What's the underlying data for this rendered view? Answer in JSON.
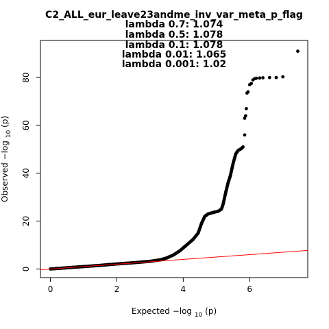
{
  "chart_data": {
    "type": "scatter",
    "title": "C2_ALL_eur_leave23andme_inv_var_meta_p_flag",
    "subtitle_lines": [
      "lambda 0.7: 1.074",
      "lambda 0.5: 1.078",
      "lambda 0.1: 1.078",
      "lambda 0.01: 1.065",
      "lambda 0.001: 1.02"
    ],
    "xlabel": {
      "text": "Expected",
      "expr_prefix": "−log",
      "expr_sub": "10",
      "expr_suffix": "(p)"
    },
    "ylabel": {
      "text": "Observed",
      "expr_prefix": "−log",
      "expr_sub": "10",
      "expr_suffix": "(p)"
    },
    "xlim": [
      -0.3,
      7.75
    ],
    "ylim": [
      -3.6,
      95.5
    ],
    "x_ticks": [
      0,
      2,
      4,
      6
    ],
    "y_ticks": [
      0,
      20,
      40,
      60,
      80
    ],
    "grid": false,
    "colors": {
      "points": "#000000",
      "reference_line": "#ff0000"
    },
    "reference_line": {
      "slope": 1.0,
      "intercept": 0
    },
    "curve": [
      [
        0,
        0
      ],
      [
        0.5,
        0.5
      ],
      [
        1.0,
        1.0
      ],
      [
        1.5,
        1.5
      ],
      [
        2.0,
        2.1
      ],
      [
        2.5,
        2.6
      ],
      [
        3.0,
        3.2
      ],
      [
        3.3,
        3.8
      ],
      [
        3.5,
        4.6
      ],
      [
        3.7,
        5.8
      ],
      [
        3.9,
        7.6
      ],
      [
        4.1,
        10.0
      ],
      [
        4.3,
        12.4
      ],
      [
        4.45,
        15.0
      ],
      [
        4.55,
        19.0
      ],
      [
        4.65,
        22.0
      ],
      [
        4.75,
        23.0
      ],
      [
        4.9,
        23.6
      ],
      [
        5.05,
        24.1
      ],
      [
        5.15,
        25.0
      ],
      [
        5.2,
        27.0
      ],
      [
        5.28,
        32.0
      ],
      [
        5.35,
        36.0
      ],
      [
        5.42,
        39.0
      ],
      [
        5.5,
        44.0
      ],
      [
        5.58,
        48.0
      ],
      [
        5.65,
        49.5
      ],
      [
        5.75,
        50.3
      ],
      [
        5.8,
        51.0
      ]
    ],
    "top_points": [
      [
        5.85,
        56
      ],
      [
        5.85,
        63
      ],
      [
        5.88,
        64
      ],
      [
        5.9,
        67
      ],
      [
        5.92,
        73.5
      ],
      [
        5.95,
        74
      ],
      [
        6.0,
        77
      ],
      [
        6.05,
        77.5
      ],
      [
        6.1,
        79
      ],
      [
        6.15,
        79.5
      ],
      [
        6.2,
        79.7
      ],
      [
        6.3,
        79.8
      ],
      [
        6.4,
        79.9
      ],
      [
        6.6,
        80.0
      ],
      [
        6.8,
        80.0
      ],
      [
        7.0,
        80.3
      ],
      [
        7.45,
        91.0
      ]
    ]
  }
}
